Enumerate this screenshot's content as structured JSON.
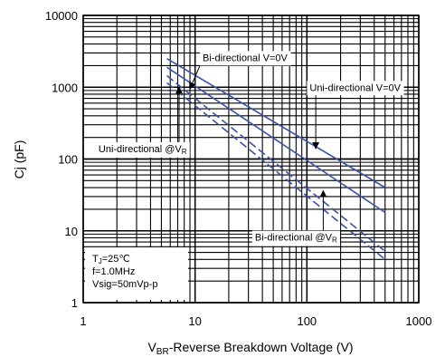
{
  "chart_data": {
    "type": "line",
    "title": "",
    "x_scale": "log",
    "y_scale": "log",
    "xlim": [
      1,
      1000
    ],
    "ylim": [
      1,
      10000
    ],
    "grid": true,
    "x_ticks": [
      {
        "value": 1,
        "label": "1"
      },
      {
        "value": 10,
        "label": "10"
      },
      {
        "value": 100,
        "label": "100"
      },
      {
        "value": 1000,
        "label": "1000"
      }
    ],
    "y_ticks": [
      {
        "value": 1,
        "label": "1"
      },
      {
        "value": 10,
        "label": "10"
      },
      {
        "value": 100,
        "label": "100"
      },
      {
        "value": 1000,
        "label": "1000"
      },
      {
        "value": 10000,
        "label": "10000"
      }
    ],
    "xlabel": {
      "main": "V",
      "sub": "BR",
      "rest": "-Reverse Breakdown Voltage (V)"
    },
    "ylabel": "Cj (pF)",
    "series": [
      {
        "style": "solid",
        "color": "#3a54a4",
        "x": [
          5.6,
          500
        ],
        "y": [
          2500,
          40
        ]
      },
      {
        "style": "solid",
        "color": "#3a54a4",
        "x": [
          5.6,
          500
        ],
        "y": [
          1900,
          18
        ]
      },
      {
        "style": "dashed",
        "color": "#3a54a4",
        "x": [
          5.6,
          500
        ],
        "y": [
          1450,
          5.2
        ]
      },
      {
        "style": "dashed",
        "color": "#3a54a4",
        "x": [
          5.6,
          500
        ],
        "y": [
          1150,
          4
        ]
      }
    ],
    "annotations": [
      {
        "text": "Bi-directional V=0V",
        "sub": "",
        "box_at": [
          28,
          2600
        ],
        "arrow_to": [
          9,
          950
        ]
      },
      {
        "text": "Uni-directional V=0V",
        "sub": "",
        "box_at": [
          270,
          1000
        ],
        "arrow_to": [
          120,
          140
        ]
      },
      {
        "text": "Uni-directional @V",
        "sub": "R",
        "box_at": [
          3.4,
          140
        ],
        "arrow_to": [
          7.2,
          1000
        ]
      },
      {
        "text": "Bi-directional @V",
        "sub": "R",
        "box_at": [
          80,
          8.2
        ],
        "arrow_to": [
          140,
          36
        ]
      }
    ],
    "conditions": [
      {
        "text": "T",
        "sub": "J",
        "rest": "=25℃"
      },
      {
        "text": "f=1.0MHz",
        "sub": "",
        "rest": ""
      },
      {
        "text": "Vsig=50mVp-p",
        "sub": "",
        "rest": ""
      }
    ]
  }
}
